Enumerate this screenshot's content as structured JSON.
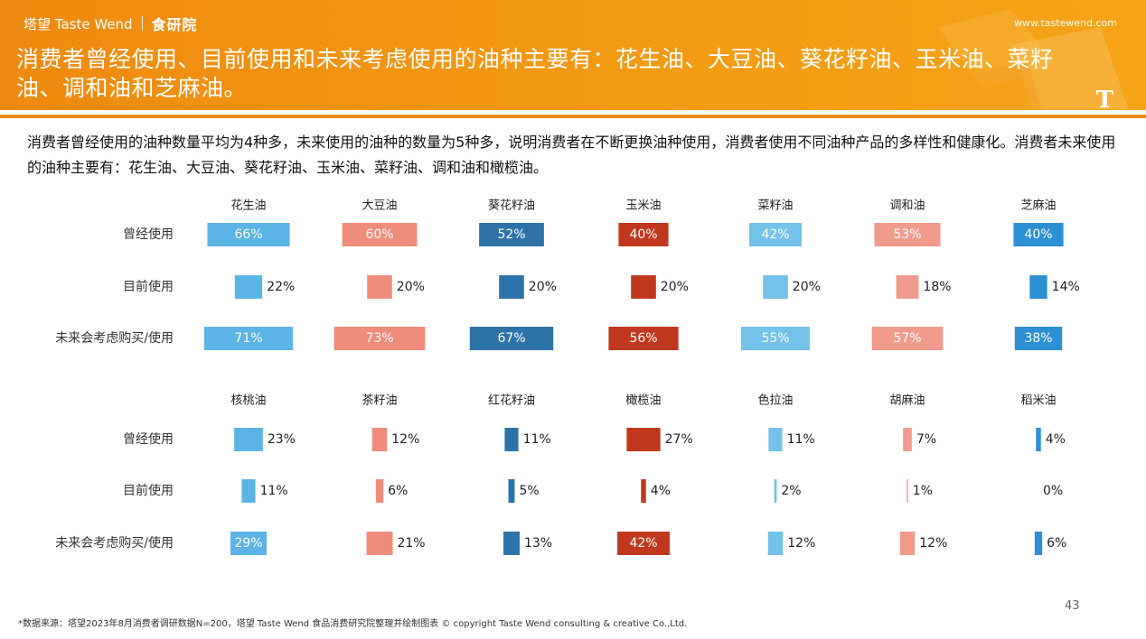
{
  "header": {
    "brand": "塔望 Taste Wend",
    "brand_sub": "食研院",
    "site": "www.tastewend.com",
    "title": "消费者曾经使用、目前使用和未来考虑使用的油种主要有：花生油、大豆油、葵花籽油、玉米油、菜籽油、调和油和芝麻油。",
    "logo_letter": "T"
  },
  "description": "消费者曾经使用的油种数量平均为4种多，未来使用的油种的数量为5种多，说明消费者在不断更换油种使用，消费者使用不同油种产品的多样性和健康化。消费者未来使用的油种主要有：花生油、大豆油、葵花籽油、玉米油、菜籽油、调和油和橄榄油。",
  "colors": [
    "#5bb4e5",
    "#ef8c7c",
    "#2e73a8",
    "#c0391f",
    "#74c1ea",
    "#f09a8c",
    "#2d8fd4"
  ],
  "chart_data": {
    "type": "bar",
    "rows": [
      "曾经使用",
      "目前使用",
      "未来会考虑购买/使用"
    ],
    "groups": [
      {
        "categories": [
          "花生油",
          "大豆油",
          "葵花籽油",
          "玉米油",
          "菜籽油",
          "调和油",
          "芝麻油"
        ],
        "series": [
          {
            "name": "曾经使用",
            "values": [
              66,
              60,
              52,
              40,
              42,
              53,
              40
            ]
          },
          {
            "name": "目前使用",
            "values": [
              22,
              20,
              20,
              20,
              20,
              18,
              14
            ]
          },
          {
            "name": "未来会考虑购买/使用",
            "values": [
              71,
              73,
              67,
              56,
              55,
              57,
              38
            ]
          }
        ]
      },
      {
        "categories": [
          "核桃油",
          "茶籽油",
          "红花籽油",
          "橄榄油",
          "色拉油",
          "胡麻油",
          "稻米油"
        ],
        "series": [
          {
            "name": "曾经使用",
            "values": [
              23,
              12,
              11,
              27,
              11,
              7,
              4
            ]
          },
          {
            "name": "目前使用",
            "values": [
              11,
              6,
              5,
              4,
              2,
              1,
              0
            ]
          },
          {
            "name": "未来会考虑购买/使用",
            "values": [
              29,
              21,
              13,
              42,
              12,
              12,
              6
            ]
          }
        ]
      }
    ],
    "value_suffix": "%"
  },
  "footer": "*数据来源：塔望2023年8月消费者调研数据N=200，塔望 Taste Wend 食品消费研究院整理并绘制图表 © copyright Taste Wend consulting & creative Co.,Ltd.",
  "page_number": "43"
}
